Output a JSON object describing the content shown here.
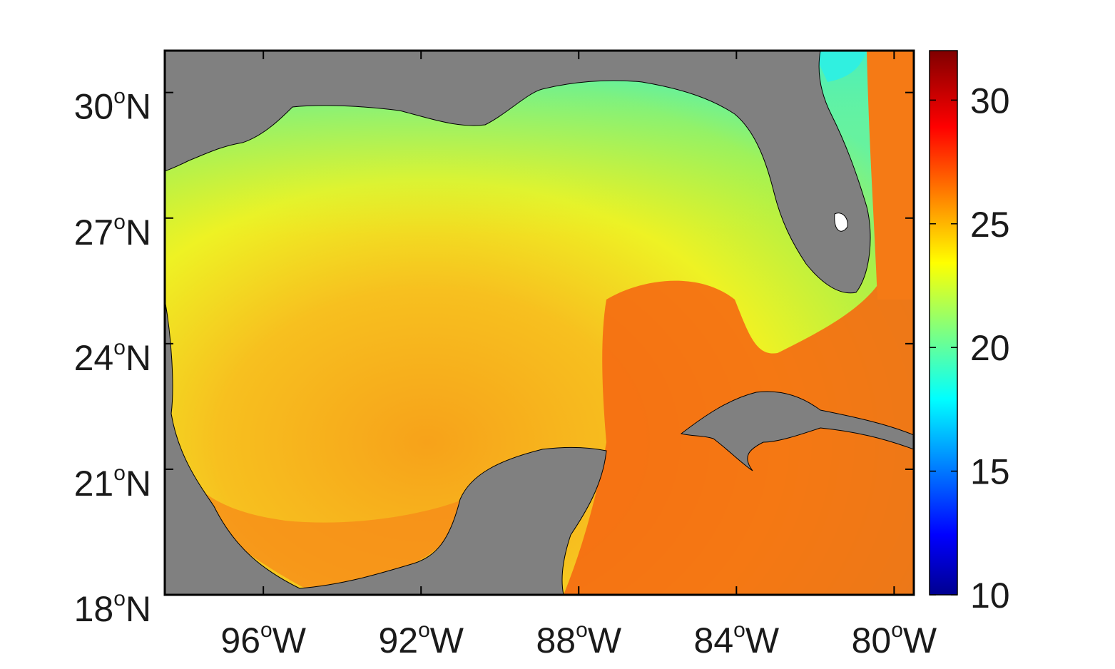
{
  "map": {
    "region": "Gulf of Mexico",
    "variable": "sea surface temperature",
    "lon_range": [
      -98.5,
      -79.5
    ],
    "lat_range": [
      18,
      31
    ],
    "land_color": "#808080",
    "lon_ticks": [
      {
        "value": -96,
        "num": "96",
        "deg": "o",
        "hemi": "W"
      },
      {
        "value": -92,
        "num": "92",
        "deg": "o",
        "hemi": "W"
      },
      {
        "value": -88,
        "num": "88",
        "deg": "o",
        "hemi": "W"
      },
      {
        "value": -84,
        "num": "84",
        "deg": "o",
        "hemi": "W"
      },
      {
        "value": -80,
        "num": "80",
        "deg": "o",
        "hemi": "W"
      }
    ],
    "lat_ticks": [
      {
        "value": 18,
        "num": "18",
        "deg": "o",
        "hemi": "N"
      },
      {
        "value": 21,
        "num": "21",
        "deg": "o",
        "hemi": "N"
      },
      {
        "value": 24,
        "num": "24",
        "deg": "o",
        "hemi": "N"
      },
      {
        "value": 27,
        "num": "27",
        "deg": "o",
        "hemi": "N"
      },
      {
        "value": 30,
        "num": "30",
        "deg": "o",
        "hemi": "N"
      }
    ]
  },
  "colorbar": {
    "colormap": "jet",
    "min": 10,
    "max": 32,
    "ticks": [
      {
        "value": 10,
        "label": "10"
      },
      {
        "value": 15,
        "label": "15"
      },
      {
        "value": 20,
        "label": "20"
      },
      {
        "value": 25,
        "label": "25"
      },
      {
        "value": 30,
        "label": "30"
      }
    ]
  }
}
